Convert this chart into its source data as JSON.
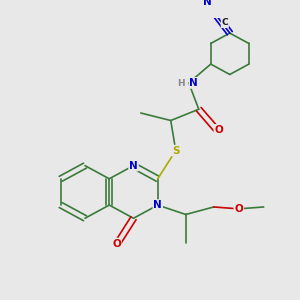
{
  "bg_color": "#e8e8e8",
  "bond_color": "#3a7a3a",
  "atom_colors": {
    "N": "#0000cc",
    "O": "#cc0000",
    "S": "#aaaa00",
    "C": "#1a1a1a",
    "H": "#888888"
  },
  "figsize": [
    3.0,
    3.0
  ],
  "dpi": 100
}
